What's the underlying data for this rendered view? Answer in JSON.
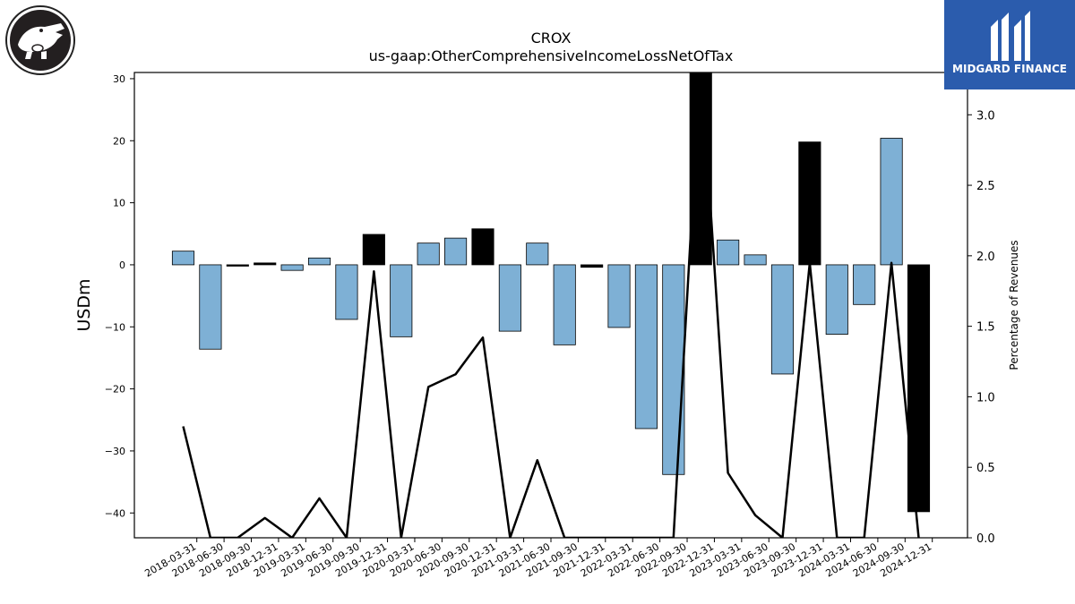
{
  "chart_data": {
    "type": "bar",
    "title": "CROX",
    "subtitle": "us-gaap:OtherComprehensiveIncomeLossNetOfTax",
    "ylabel": "USDm",
    "y2label": "Percentage of Revenues",
    "categories": [
      "2018-03-31",
      "2018-06-30",
      "2018-09-30",
      "2018-12-31",
      "2019-03-31",
      "2019-06-30",
      "2019-09-30",
      "2019-12-31",
      "2020-03-31",
      "2020-06-30",
      "2020-09-30",
      "2020-12-31",
      "2021-03-31",
      "2021-06-30",
      "2021-09-30",
      "2021-12-31",
      "2022-03-31",
      "2022-06-30",
      "2022-09-30",
      "2022-12-31",
      "2023-03-31",
      "2023-06-30",
      "2023-09-30",
      "2023-12-31",
      "2024-03-31",
      "2024-06-30",
      "2024-09-30",
      "2024-12-31"
    ],
    "values": [
      2.2,
      -13.6,
      -0.1,
      0.3,
      -0.9,
      1.1,
      -8.8,
      4.9,
      -11.6,
      3.5,
      4.3,
      5.8,
      -10.7,
      3.5,
      -12.9,
      -0.4,
      -10.1,
      -26.4,
      -33.8,
      31.5,
      4.0,
      1.6,
      -17.6,
      19.8,
      -11.2,
      -6.4,
      20.4,
      -39.8
    ],
    "highlight": [
      false,
      false,
      true,
      true,
      false,
      false,
      false,
      true,
      false,
      false,
      false,
      true,
      false,
      false,
      false,
      true,
      false,
      false,
      false,
      true,
      false,
      false,
      false,
      true,
      false,
      false,
      false,
      true
    ],
    "ylim": [
      -44,
      31
    ],
    "yticks": [
      -40,
      -30,
      -20,
      -10,
      0,
      10,
      20,
      30
    ],
    "series2": {
      "values": [
        0.79,
        0.0,
        0.0,
        0.14,
        0.0,
        0.28,
        0.0,
        1.89,
        0.0,
        1.07,
        1.16,
        1.42,
        0.0,
        0.55,
        0.0,
        0.0,
        0.0,
        0.0,
        0.0,
        3.4,
        0.46,
        0.16,
        0.0,
        1.95,
        0.0,
        0.0,
        1.95,
        0.0
      ]
    },
    "y2lim": [
      0.0,
      3.3
    ],
    "y2ticks": [
      "0.0",
      "0.5",
      "1.0",
      "1.5",
      "2.0",
      "2.5",
      "3.0"
    ],
    "colors": {
      "bar": "#7eb0d5",
      "bar_highlight": "#000000",
      "line": "#000000"
    }
  },
  "brand": {
    "name": "MIDGARD FINANCE"
  }
}
